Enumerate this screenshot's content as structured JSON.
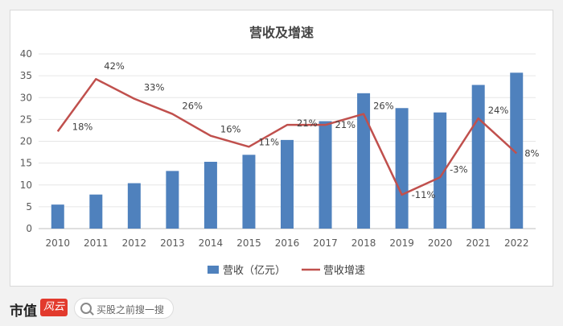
{
  "chart_data": {
    "type": "bar+line",
    "title": "营收及增速",
    "categories": [
      "2010",
      "2011",
      "2012",
      "2013",
      "2014",
      "2015",
      "2016",
      "2017",
      "2018",
      "2019",
      "2020",
      "2021",
      "2022"
    ],
    "series": [
      {
        "name": "营收（亿元）",
        "type": "bar",
        "color": "#4f81bd",
        "values": [
          5.5,
          7.8,
          10.4,
          13.2,
          15.3,
          16.9,
          20.3,
          24.6,
          31.0,
          27.6,
          26.6,
          32.9,
          35.7
        ]
      },
      {
        "name": "营收增速",
        "type": "line",
        "color": "#c0504d",
        "values": [
          0.18,
          0.42,
          0.33,
          0.26,
          0.16,
          0.11,
          0.21,
          0.21,
          0.26,
          -0.11,
          -0.03,
          0.24,
          0.08
        ],
        "labels": [
          "18%",
          "42%",
          "33%",
          "26%",
          "16%",
          "11%",
          "21%",
          "21%",
          "26%",
          "-11%",
          "-3%",
          "24%",
          "8%"
        ]
      }
    ],
    "yticks": [
      "0",
      "5",
      "10",
      "15",
      "20",
      "25",
      "30",
      "35",
      "40"
    ],
    "ylim": [
      0,
      40
    ],
    "grid": true,
    "legend_position": "bottom"
  },
  "footer": {
    "logo": "市值",
    "logo_badge": "风云",
    "search_placeholder": "买股之前搜一搜"
  }
}
